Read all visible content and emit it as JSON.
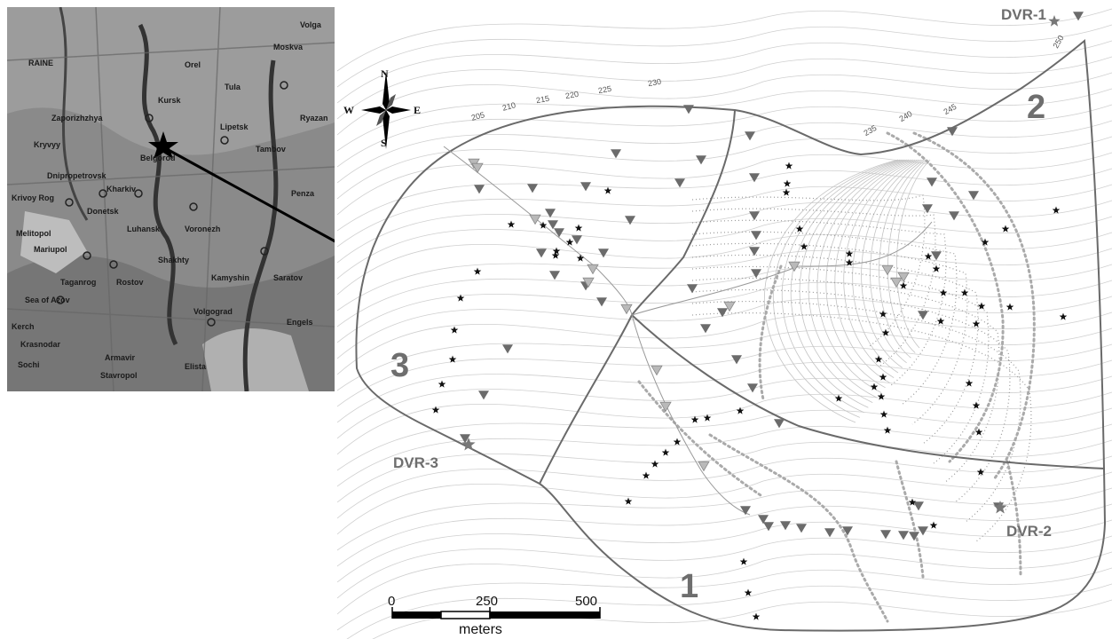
{
  "inset_map": {
    "places": [
      "RAINE",
      "Kryvyy",
      "Dnipropetrovsk",
      "Kharkiv",
      "Donetsk",
      "Krivoy Rog",
      "Mariupol",
      "Rostov",
      "Voronezh",
      "Saratov",
      "Volgograd",
      "Kursk",
      "Moskva",
      "Volga",
      "Tambov",
      "Lipetsk",
      "Krasnodar",
      "Stavropol",
      "Armavir",
      "Engels",
      "Penza",
      "Orel",
      "Tula",
      "Ryazan",
      "Belgorod",
      "Luhansk",
      "Shakhty",
      "Taganrog",
      "Elista",
      "Kamyshin",
      "Sea of Azov",
      "Sochi",
      "Kerch",
      "Melitopol",
      "Zaporizhzhya"
    ],
    "marker": "star"
  },
  "compass": {
    "north": "N",
    "south": "S",
    "east": "E",
    "west": "W"
  },
  "contour_labels": [
    "205",
    "210",
    "215",
    "220",
    "225",
    "230",
    "235",
    "240",
    "245",
    "250"
  ],
  "subbasins": [
    "1",
    "2",
    "3"
  ],
  "stations": [
    "DVR-1",
    "DVR-2",
    "DVR-3"
  ],
  "scale_bar": {
    "ticks": [
      "0",
      "250",
      "500"
    ],
    "unit": "meters"
  },
  "colors": {
    "boundary": "#6a6a6a",
    "dark_triangle": "#6b6b6b",
    "light_triangle": "#b9b9b9",
    "star": "#111111",
    "contour": "#cfcfcf",
    "terrace": "#9a9a9a"
  }
}
